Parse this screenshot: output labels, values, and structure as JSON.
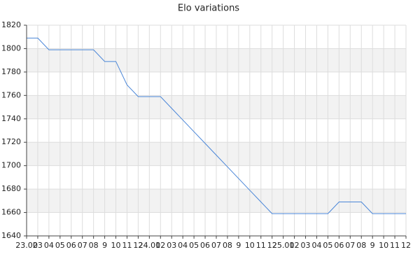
{
  "chart_data": {
    "type": "line",
    "title": "Elo variations",
    "categories": [
      "23.02",
      "03",
      "04",
      "05",
      "06",
      "07",
      "08",
      "9",
      "10",
      "11",
      "12",
      "24.01",
      "02",
      "03",
      "04",
      "05",
      "06",
      "07",
      "08",
      "9",
      "10",
      "11",
      "12",
      "25.01",
      "02",
      "03",
      "04",
      "05",
      "06",
      "07",
      "08",
      "9",
      "10",
      "11",
      "12"
    ],
    "series": [
      {
        "name": "Elo",
        "color": "#4a86d8",
        "values": [
          1809,
          1809,
          1799,
          1799,
          1799,
          1799,
          1799,
          1789,
          1789,
          1769,
          1759,
          1759,
          1759,
          1749,
          1739,
          1729,
          1719,
          1709,
          1699,
          1689,
          1679,
          1669,
          1659,
          1659,
          1659,
          1659,
          1659,
          1659,
          1669,
          1669,
          1669,
          1659,
          1659,
          1659,
          1659
        ]
      }
    ],
    "ylim": [
      1640,
      1820
    ],
    "yticks": [
      1640,
      1660,
      1680,
      1700,
      1720,
      1740,
      1760,
      1780,
      1800,
      1820
    ],
    "grid": true
  }
}
